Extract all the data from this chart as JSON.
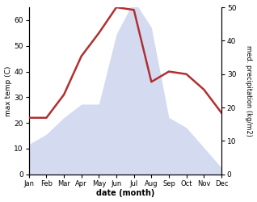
{
  "months": [
    "Jan",
    "Feb",
    "Mar",
    "Apr",
    "May",
    "Jun",
    "Jul",
    "Aug",
    "Sep",
    "Oct",
    "Nov",
    "Dec"
  ],
  "temp": [
    22,
    22,
    31,
    46,
    55,
    65,
    64,
    36,
    40,
    39,
    33,
    24
  ],
  "precip": [
    9,
    12,
    17,
    21,
    21,
    42,
    52,
    44,
    17,
    14,
    8,
    2
  ],
  "temp_color": "#b03030",
  "precip_fill_color": "#b8c4e8",
  "ylabel_left": "max temp (C)",
  "ylabel_right": "med. precipitation (kg/m2)",
  "xlabel": "date (month)",
  "ylim_left": [
    0,
    65
  ],
  "ylim_right": [
    0,
    50
  ],
  "yticks_left": [
    0,
    10,
    20,
    30,
    40,
    50,
    60
  ],
  "yticks_right": [
    0,
    10,
    20,
    30,
    40,
    50
  ],
  "temp_lw": 1.8,
  "precip_alpha": 0.6
}
